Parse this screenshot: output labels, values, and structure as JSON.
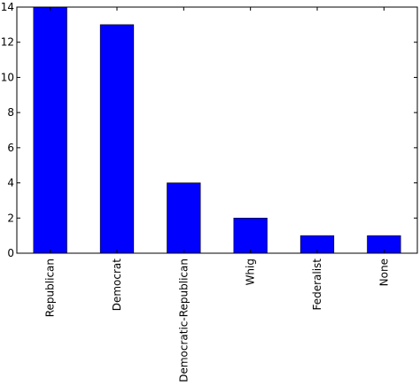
{
  "chart_data": {
    "type": "bar",
    "title": "",
    "xlabel": "",
    "ylabel": "",
    "categories": [
      "Republican",
      "Democrat",
      "Democratic-Republican",
      "Whig",
      "Federalist",
      "None"
    ],
    "values": [
      14,
      13,
      4,
      2,
      1,
      1
    ],
    "ylim": [
      0,
      14
    ],
    "yticks": [
      "0",
      "2",
      "4",
      "6",
      "8",
      "10",
      "12",
      "14"
    ],
    "grid": false,
    "bar_color": "#0000ff",
    "bar_edge_color": "#000000",
    "x_tick_rotation": "vertical"
  }
}
